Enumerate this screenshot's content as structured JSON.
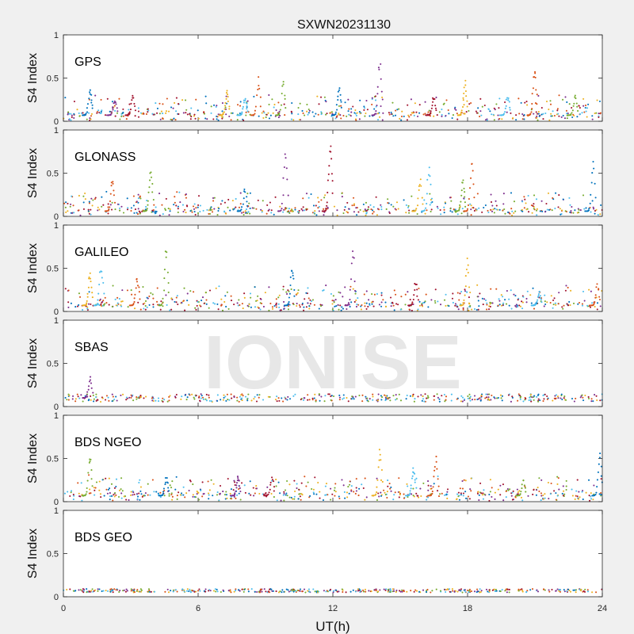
{
  "chart_data": {
    "type": "scatter",
    "title": "SXWN20231130",
    "xlabel": "UT(h)",
    "ylabel": "S4 Index",
    "xlim": [
      0,
      24
    ],
    "ylim": [
      0,
      1
    ],
    "x_ticks": [
      "0",
      "6",
      "12",
      "18",
      "24"
    ],
    "y_ticks": [
      "0",
      "0.5",
      "1"
    ],
    "watermark": "IONISE",
    "grid": false,
    "series_colors": [
      "#0072BD",
      "#D95319",
      "#EDB120",
      "#7E2F8E",
      "#77AC30",
      "#4DBEEE",
      "#A2142F"
    ],
    "panels": [
      {
        "label": "GPS",
        "baseline": 0.07,
        "peaks": [
          [
            1.2,
            0.38
          ],
          [
            2.3,
            0.27
          ],
          [
            3.1,
            0.3
          ],
          [
            7.3,
            0.36
          ],
          [
            8.1,
            0.28
          ],
          [
            8.7,
            0.53
          ],
          [
            9.8,
            0.47
          ],
          [
            12.3,
            0.42
          ],
          [
            14.1,
            0.75
          ],
          [
            16.5,
            0.3
          ],
          [
            17.9,
            0.48
          ],
          [
            19.8,
            0.3
          ],
          [
            21.0,
            0.67
          ],
          [
            22.8,
            0.3
          ]
        ]
      },
      {
        "label": "GLONASS",
        "baseline": 0.06,
        "peaks": [
          [
            2.2,
            0.48
          ],
          [
            3.9,
            0.55
          ],
          [
            8.1,
            0.33
          ],
          [
            9.9,
            0.85
          ],
          [
            11.9,
            0.92
          ],
          [
            15.9,
            0.45
          ],
          [
            16.3,
            0.65
          ],
          [
            18.2,
            0.68
          ],
          [
            17.8,
            0.44
          ],
          [
            23.6,
            0.66
          ]
        ]
      },
      {
        "label": "GALILEO",
        "baseline": 0.07,
        "peaks": [
          [
            1.2,
            0.47
          ],
          [
            1.7,
            0.6
          ],
          [
            3.3,
            0.42
          ],
          [
            4.6,
            0.75
          ],
          [
            10.2,
            0.55
          ],
          [
            12.9,
            0.78
          ],
          [
            15.7,
            0.35
          ],
          [
            18.0,
            0.62
          ],
          [
            21.2,
            0.25
          ],
          [
            23.8,
            0.32
          ]
        ]
      },
      {
        "label": "SBAS",
        "baseline": 0.1,
        "peaks": [
          [
            1.2,
            0.35
          ]
        ]
      },
      {
        "label": "BDS NGEO",
        "baseline": 0.07,
        "peaks": [
          [
            1.2,
            0.57
          ],
          [
            4.6,
            0.3
          ],
          [
            7.8,
            0.3
          ],
          [
            9.3,
            0.3
          ],
          [
            14.1,
            0.67
          ],
          [
            15.6,
            0.43
          ],
          [
            16.6,
            0.53
          ],
          [
            20.5,
            0.27
          ],
          [
            23.9,
            0.63
          ]
        ]
      },
      {
        "label": "BDS GEO",
        "baseline": 0.07,
        "peaks": []
      }
    ]
  }
}
